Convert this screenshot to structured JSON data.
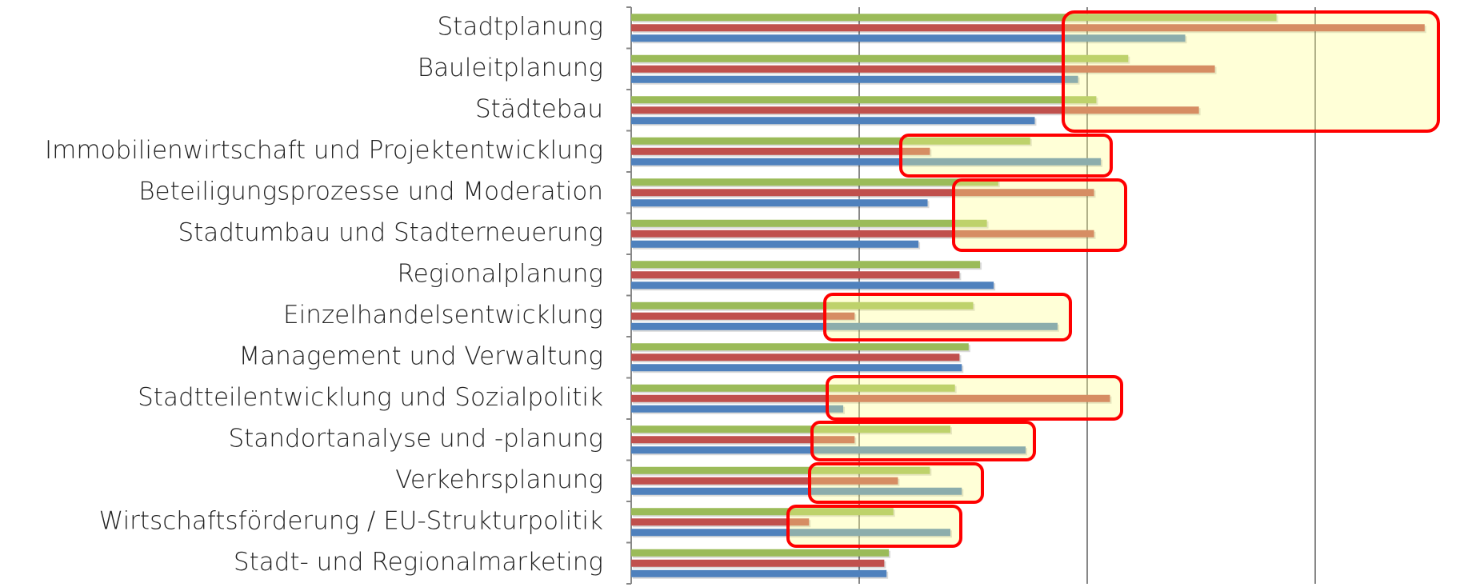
{
  "chart_data": {
    "type": "barh",
    "categories": [
      "Stadtplanung",
      "Bauleitplanung",
      "Städtebau",
      "Immobilienwirtschaft und Projektentwicklung",
      "Beteiligungsprozesse und Moderation",
      "Stadtumbau und Stadterneuerung",
      "Regionalplanung",
      "Einzelhandelsentwicklung",
      "Management und Verwaltung",
      "Stadtteilentwicklung und Sozialpolitik",
      "Standortanalyse und -planung",
      "Verkehrsplanung",
      "Wirtschaftsförderung / EU-Strukturpolitik",
      "Stadt- und Regionalmarketing"
    ],
    "series": [
      {
        "color": "#9bbb59",
        "values": [
          2.83,
          2.18,
          2.04,
          1.75,
          1.61,
          1.56,
          1.53,
          1.5,
          1.48,
          1.42,
          1.4,
          1.31,
          1.15,
          1.13
        ]
      },
      {
        "color": "#c0504d",
        "values": [
          3.48,
          2.56,
          2.49,
          1.31,
          2.03,
          2.03,
          1.44,
          0.98,
          1.44,
          2.1,
          0.98,
          1.17,
          0.78,
          1.11
        ]
      },
      {
        "color": "#4f81bd",
        "values": [
          2.43,
          1.96,
          1.77,
          2.06,
          1.3,
          1.26,
          1.59,
          1.87,
          1.45,
          0.93,
          1.73,
          1.45,
          1.4,
          1.12
        ]
      }
    ],
    "xlim": [
      0,
      3.6
    ],
    "xticks": [
      0,
      1,
      2,
      3
    ],
    "grid": true
  }
}
